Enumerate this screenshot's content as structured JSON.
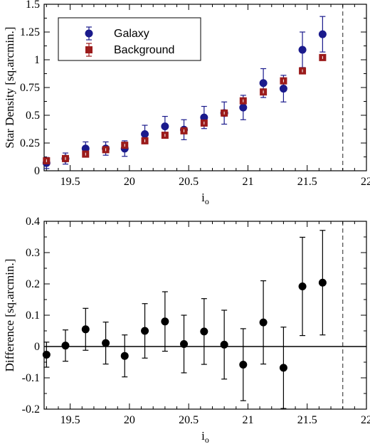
{
  "colors": {
    "galaxy": "#1a1a8c",
    "background": "#9b1b1b",
    "difference": "#000000",
    "axis": "#000000",
    "cutoff_line": "#555555"
  },
  "chart_data": [
    {
      "type": "scatter",
      "xlabel": "i",
      "xlabel_sub": "o",
      "ylabel": "Star Density [sq.arcmin.]",
      "xlim": [
        19.28,
        22
      ],
      "ylim": [
        0,
        1.5
      ],
      "x_ticks": [
        19.5,
        20,
        20.5,
        21,
        21.5,
        22
      ],
      "x_tick_labels": [
        "19.5",
        "20",
        "20.5",
        "21",
        "21.5",
        "22"
      ],
      "y_ticks": [
        0,
        0.25,
        0.5,
        0.75,
        1,
        1.25,
        1.5
      ],
      "y_tick_labels": [
        "0",
        "0.25",
        "0.5",
        "0.75",
        "1",
        "1.25",
        "1.5"
      ],
      "vertical_line_x": 21.8,
      "legend_position": "top-left",
      "series": [
        {
          "name": "Galaxy",
          "marker": "circle",
          "x": [
            19.3,
            19.46,
            19.63,
            19.8,
            19.96,
            20.13,
            20.3,
            20.46,
            20.63,
            20.8,
            20.96,
            21.13,
            21.3,
            21.46,
            21.63
          ],
          "y": [
            0.07,
            0.11,
            0.2,
            0.2,
            0.2,
            0.33,
            0.4,
            0.37,
            0.48,
            0.52,
            0.57,
            0.79,
            0.74,
            1.09,
            1.23
          ],
          "err": [
            0.05,
            0.05,
            0.06,
            0.06,
            0.07,
            0.08,
            0.09,
            0.09,
            0.1,
            0.1,
            0.11,
            0.13,
            0.12,
            0.16,
            0.16
          ]
        },
        {
          "name": "Background",
          "marker": "square",
          "x": [
            19.3,
            19.46,
            19.63,
            19.8,
            19.96,
            20.13,
            20.3,
            20.46,
            20.63,
            20.8,
            20.96,
            21.13,
            21.3,
            21.46,
            21.63
          ],
          "y": [
            0.09,
            0.11,
            0.15,
            0.19,
            0.23,
            0.27,
            0.32,
            0.36,
            0.43,
            0.52,
            0.63,
            0.71,
            0.81,
            0.9,
            1.02
          ],
          "err": [
            0.015,
            0.015,
            0.015,
            0.015,
            0.015,
            0.015,
            0.015,
            0.015,
            0.015,
            0.015,
            0.015,
            0.015,
            0.015,
            0.015,
            0.015
          ]
        }
      ]
    },
    {
      "type": "scatter",
      "xlabel": "i",
      "xlabel_sub": "o",
      "ylabel": "Difference [sq.arcmin.]",
      "xlim": [
        19.28,
        22
      ],
      "ylim": [
        -0.2,
        0.4
      ],
      "x_ticks": [
        19.5,
        20,
        20.5,
        21,
        21.5,
        22
      ],
      "x_tick_labels": [
        "19.5",
        "20",
        "20.5",
        "21",
        "21.5",
        "22"
      ],
      "y_ticks": [
        -0.2,
        -0.1,
        0,
        0.1,
        0.2,
        0.3,
        0.4
      ],
      "y_tick_labels": [
        "-0.2",
        "-0.1",
        "0",
        "0.1",
        "0.2",
        "0.3",
        "0.4"
      ],
      "vertical_line_x": 21.8,
      "horizontal_line_y": 0,
      "series": [
        {
          "marker": "circle",
          "x": [
            19.3,
            19.46,
            19.63,
            19.8,
            19.96,
            20.13,
            20.3,
            20.46,
            20.63,
            20.8,
            20.96,
            21.13,
            21.3,
            21.46,
            21.63
          ],
          "y": [
            -0.026,
            0.003,
            0.055,
            0.011,
            -0.03,
            0.05,
            0.08,
            0.008,
            0.048,
            0.006,
            -0.058,
            0.077,
            -0.068,
            0.192,
            0.204
          ],
          "err": [
            0.04,
            0.05,
            0.067,
            0.067,
            0.067,
            0.087,
            0.095,
            0.092,
            0.105,
            0.11,
            0.115,
            0.133,
            0.13,
            0.157,
            0.167
          ]
        }
      ]
    }
  ]
}
